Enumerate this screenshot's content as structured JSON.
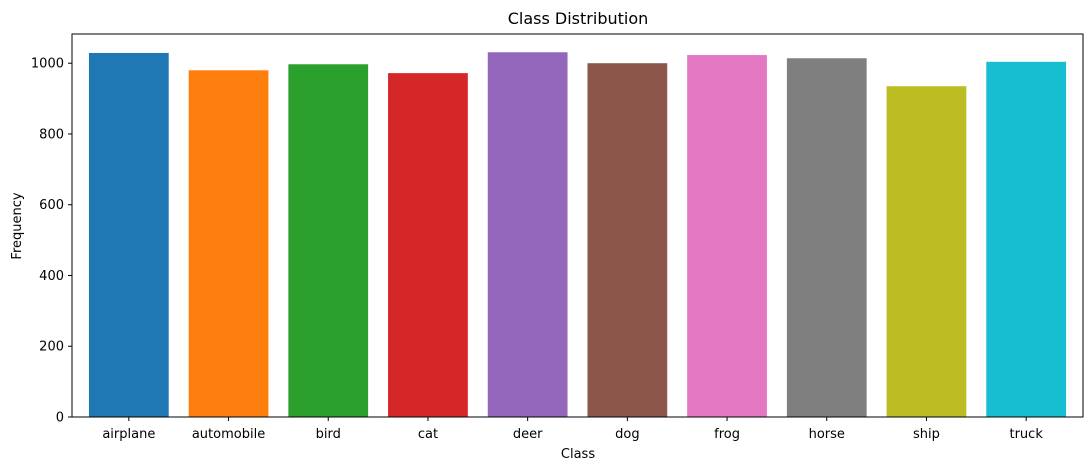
{
  "chart_data": {
    "type": "bar",
    "title": "Class Distribution",
    "xlabel": "Class",
    "ylabel": "Frequency",
    "categories": [
      "airplane",
      "automobile",
      "bird",
      "cat",
      "deer",
      "dog",
      "frog",
      "horse",
      "ship",
      "truck"
    ],
    "values": [
      1029,
      980,
      997,
      972,
      1031,
      1000,
      1023,
      1014,
      935,
      1004
    ],
    "colors": [
      "#1f77b4",
      "#ff7f0e",
      "#2ca02c",
      "#d62728",
      "#9467bd",
      "#8c564b",
      "#e377c2",
      "#7f7f7f",
      "#bcbd22",
      "#17becf"
    ],
    "ylim": [
      0,
      1082.55
    ],
    "yticks": [
      0,
      200,
      400,
      600,
      800,
      1000
    ],
    "grid": false,
    "legend": "none"
  }
}
